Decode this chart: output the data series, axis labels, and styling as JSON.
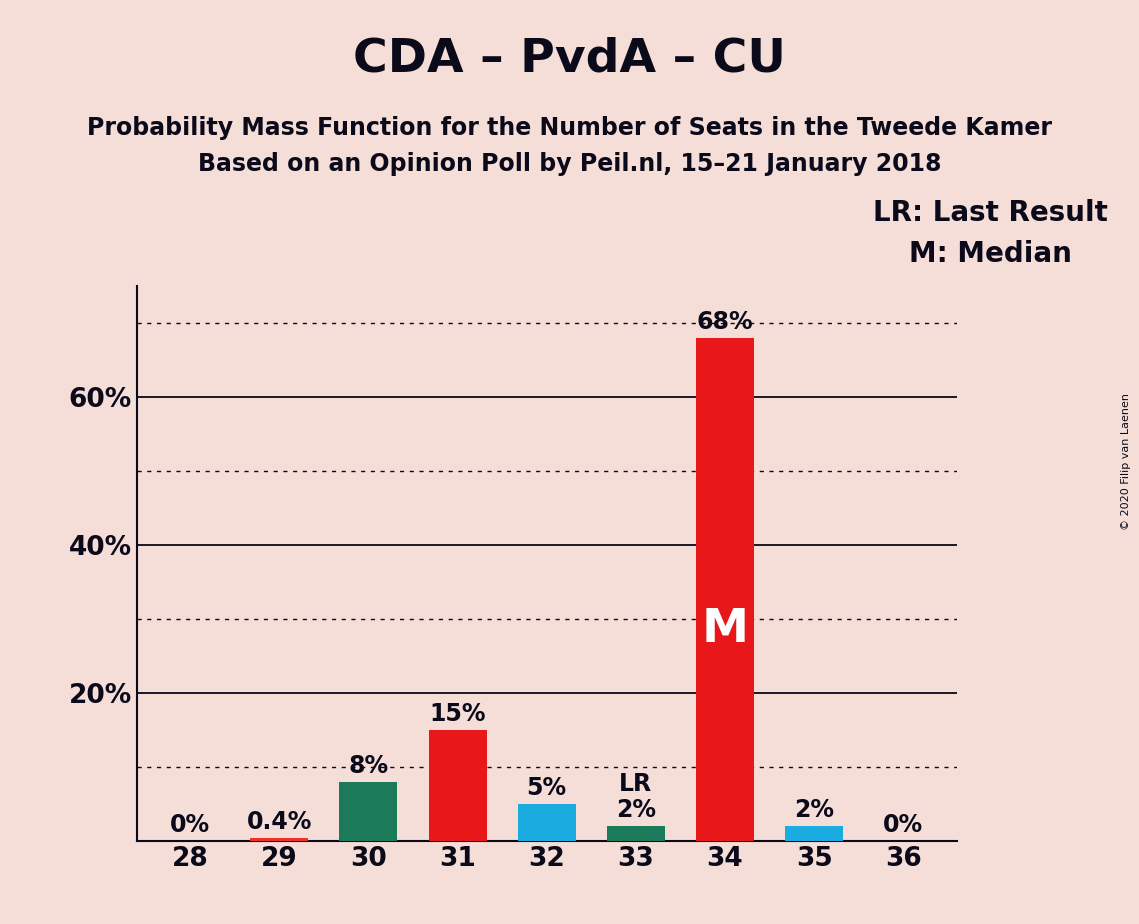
{
  "title": "CDA – PvdA – CU",
  "subtitle1": "Probability Mass Function for the Number of Seats in the Tweede Kamer",
  "subtitle2": "Based on an Opinion Poll by Peil.nl, 15–21 January 2018",
  "copyright": "© 2020 Filip van Laenen",
  "categories": [
    28,
    29,
    30,
    31,
    32,
    33,
    34,
    35,
    36
  ],
  "values": [
    0,
    0.4,
    8,
    15,
    5,
    2,
    68,
    2,
    0
  ],
  "bar_colors": [
    "#f0302a",
    "#f0302a",
    "#1b7a5a",
    "#e8181a",
    "#1aace0",
    "#1b7a5a",
    "#e8181a",
    "#1aace0",
    "#f0302a"
  ],
  "bar_labels": [
    "0%",
    "0.4%",
    "8%",
    "15%",
    "5%",
    "2%",
    "68%",
    "2%",
    "0%"
  ],
  "lr_bar_idx": 5,
  "median_bar_idx": 6,
  "ylim": [
    0,
    75
  ],
  "solid_gridlines": [
    20,
    40,
    60
  ],
  "dotted_gridlines": [
    10,
    30,
    50,
    70
  ],
  "background_color": "#f5ddd8",
  "grid_color": "#0a0a1a",
  "legend_line1": "LR: Last Result",
  "legend_line2": "M: Median",
  "title_fontsize": 34,
  "subtitle_fontsize": 17,
  "bar_label_fontsize": 17,
  "axis_tick_fontsize": 19,
  "legend_fontsize": 20,
  "median_label_fontsize": 34,
  "copyright_fontsize": 8
}
